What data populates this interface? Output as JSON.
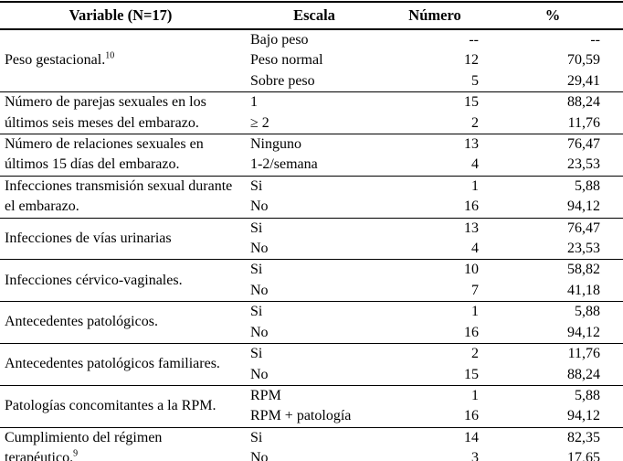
{
  "colors": {
    "text": "#000000",
    "border": "#000000",
    "background": "#ffffff"
  },
  "table": {
    "headers": {
      "variable": "Variable (N=17)",
      "escala": "Escala",
      "numero": "Número",
      "pct": "%"
    },
    "groups": [
      {
        "variable": {
          "text": "Peso gestacional.",
          "sup": "10"
        },
        "rows": [
          {
            "escala": "Bajo peso",
            "numero": "--",
            "pct": "--"
          },
          {
            "escala": "Peso normal",
            "numero": "12",
            "pct": "70,59"
          },
          {
            "escala": "Sobre peso",
            "numero": "5",
            "pct": "29,41"
          }
        ]
      },
      {
        "variable": {
          "text": "Número de parejas sexuales en los últimos seis meses del embarazo.",
          "sup": ""
        },
        "rows": [
          {
            "escala": "1",
            "numero": "15",
            "pct": "88,24"
          },
          {
            "escala": "≥ 2",
            "numero": "2",
            "pct": "11,76"
          }
        ]
      },
      {
        "variable": {
          "text": "Número de relaciones sexuales en últimos 15 días del embarazo.",
          "sup": ""
        },
        "rows": [
          {
            "escala": "Ninguno",
            "numero": "13",
            "pct": "76,47"
          },
          {
            "escala": "1-2/semana",
            "numero": "4",
            "pct": "23,53"
          }
        ]
      },
      {
        "variable": {
          "text": "Infecciones transmisión sexual durante el embarazo.",
          "sup": ""
        },
        "rows": [
          {
            "escala": "Si",
            "numero": "1",
            "pct": "5,88"
          },
          {
            "escala": "No",
            "numero": "16",
            "pct": "94,12"
          }
        ]
      },
      {
        "variable": {
          "text": "Infecciones de vías urinarias",
          "sup": ""
        },
        "rows": [
          {
            "escala": "Si",
            "numero": "13",
            "pct": "76,47"
          },
          {
            "escala": "No",
            "numero": "4",
            "pct": "23,53"
          }
        ]
      },
      {
        "variable": {
          "text": "Infecciones cérvico-vaginales.",
          "sup": ""
        },
        "rows": [
          {
            "escala": "Si",
            "numero": "10",
            "pct": "58,82"
          },
          {
            "escala": "No",
            "numero": "7",
            "pct": "41,18"
          }
        ]
      },
      {
        "variable": {
          "text": "Antecedentes patológicos.",
          "sup": ""
        },
        "rows": [
          {
            "escala": "Si",
            "numero": "1",
            "pct": "5,88"
          },
          {
            "escala": "No",
            "numero": "16",
            "pct": "94,12"
          }
        ]
      },
      {
        "variable": {
          "text": "Antecedentes patológicos familiares.",
          "sup": ""
        },
        "rows": [
          {
            "escala": "Si",
            "numero": "2",
            "pct": "11,76"
          },
          {
            "escala": "No",
            "numero": "15",
            "pct": "88,24"
          }
        ]
      },
      {
        "variable": {
          "text": "Patologías concomitantes a la RPM.",
          "sup": ""
        },
        "rows": [
          {
            "escala": "RPM",
            "numero": "1",
            "pct": "5,88"
          },
          {
            "escala": "RPM + patología",
            "numero": "16",
            "pct": "94,12"
          }
        ]
      },
      {
        "variable": {
          "text": "Cumplimiento del régimen terapéutico.",
          "sup": "9"
        },
        "rows": [
          {
            "escala": "Si",
            "numero": "14",
            "pct": "82,35"
          },
          {
            "escala": "No",
            "numero": "3",
            "pct": "17,65"
          }
        ]
      }
    ]
  }
}
